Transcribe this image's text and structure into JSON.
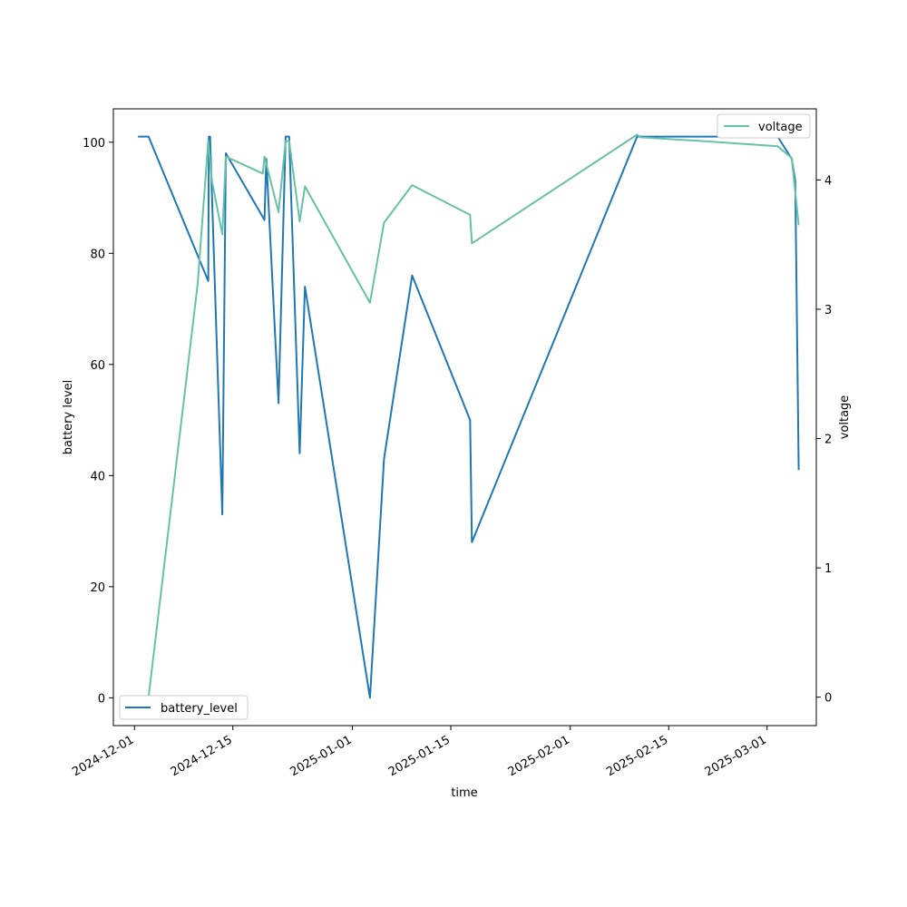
{
  "chart_data": {
    "type": "line",
    "xlabel": "time",
    "ylabel": "battery level",
    "y2label": "voltage",
    "xlim": [
      "2024-11-28",
      "2025-03-08"
    ],
    "ylim": [
      -5,
      106
    ],
    "y2lim": [
      -0.22,
      4.55
    ],
    "x_ticks": [
      "2024-12-01",
      "2024-12-15",
      "2025-01-01",
      "2025-01-15",
      "2025-02-01",
      "2025-02-15",
      "2025-03-01"
    ],
    "y_ticks": [
      0,
      20,
      40,
      60,
      80,
      100
    ],
    "y2_ticks": [
      0,
      1,
      2,
      3,
      4
    ],
    "grid": false,
    "series": [
      {
        "name": "battery_level",
        "axis": "left",
        "color": "#1f77b4",
        "legend_position": "lower-left",
        "points": [
          [
            "2024-12-01T12:00",
            101
          ],
          [
            "2024-12-03T00:00",
            101
          ],
          [
            "2024-12-11T12:00",
            75
          ],
          [
            "2024-12-11T14:00",
            101
          ],
          [
            "2024-12-11T18:00",
            101
          ],
          [
            "2024-12-13T12:00",
            33
          ],
          [
            "2024-12-14T00:00",
            98
          ],
          [
            "2024-12-19T12:00",
            86
          ],
          [
            "2024-12-19T18:00",
            97
          ],
          [
            "2024-12-21T12:00",
            53
          ],
          [
            "2024-12-22T12:00",
            101
          ],
          [
            "2024-12-23T00:00",
            101
          ],
          [
            "2024-12-24T12:00",
            44
          ],
          [
            "2024-12-25T06:00",
            74
          ],
          [
            "2025-01-03T12:00",
            0
          ],
          [
            "2025-01-05T12:00",
            43
          ],
          [
            "2025-01-09T12:00",
            76
          ],
          [
            "2025-01-17T18:00",
            50
          ],
          [
            "2025-01-18T00:00",
            28
          ],
          [
            "2025-02-10T12:00",
            101
          ],
          [
            "2025-03-02T12:00",
            101
          ],
          [
            "2025-03-04T12:00",
            97
          ],
          [
            "2025-03-05T00:00",
            93
          ],
          [
            "2025-03-05T12:00",
            41
          ]
        ]
      },
      {
        "name": "voltage",
        "axis": "right",
        "color": "#66c2a5",
        "legend_position": "upper-right",
        "points": [
          [
            "2024-12-01T12:00",
            0
          ],
          [
            "2024-12-03T00:00",
            0
          ],
          [
            "2024-12-10T00:00",
            3.2
          ],
          [
            "2024-12-11T12:00",
            4.3
          ],
          [
            "2024-12-12T00:00",
            4.0
          ],
          [
            "2024-12-13T12:00",
            3.58
          ],
          [
            "2024-12-14T00:00",
            4.18
          ],
          [
            "2024-12-19T06:00",
            4.05
          ],
          [
            "2024-12-19T12:00",
            4.18
          ],
          [
            "2024-12-21T12:00",
            3.75
          ],
          [
            "2024-12-22T12:00",
            4.3
          ],
          [
            "2024-12-23T00:00",
            4.3
          ],
          [
            "2024-12-24T12:00",
            3.68
          ],
          [
            "2024-12-25T06:00",
            3.95
          ],
          [
            "2025-01-03T12:00",
            3.05
          ],
          [
            "2025-01-05T12:00",
            3.67
          ],
          [
            "2025-01-09T12:00",
            3.96
          ],
          [
            "2025-01-17T18:00",
            3.73
          ],
          [
            "2025-01-18T00:00",
            3.51
          ],
          [
            "2025-02-10T12:00",
            4.35
          ],
          [
            "2025-02-11T00:00",
            4.33
          ],
          [
            "2025-02-20T00:00",
            4.3
          ],
          [
            "2025-03-02T12:00",
            4.26
          ],
          [
            "2025-03-04T12:00",
            4.17
          ],
          [
            "2025-03-05T12:00",
            3.65
          ]
        ]
      }
    ]
  }
}
